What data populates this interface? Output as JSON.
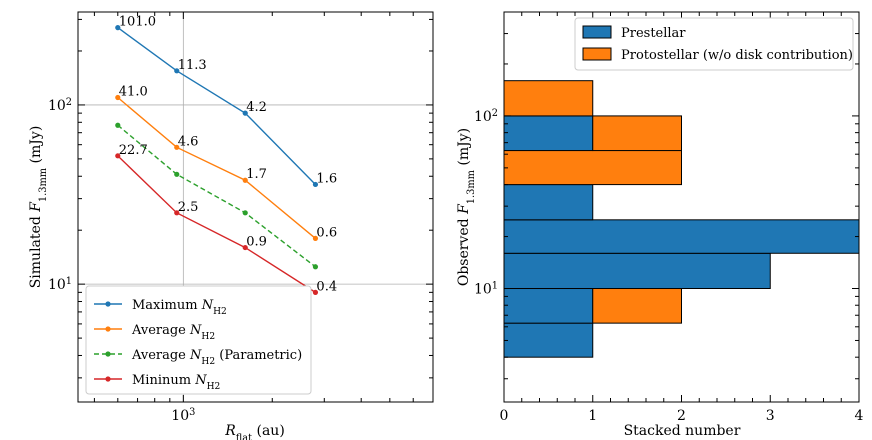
{
  "chart_data": [
    {
      "type": "line",
      "xlabel": "R_flat (au)",
      "ylabel": "Simulated F_1.3mm (mJy)",
      "xscale": "log",
      "yscale": "log",
      "x_tick_labels": [
        "10^3"
      ],
      "y_tick_labels": [
        "10^1",
        "10^2"
      ],
      "xlim": [
        440,
        7000
      ],
      "ylim": [
        2.2,
        330
      ],
      "grid": true,
      "legend_position": "lower-left",
      "x": [
        600,
        950,
        1620,
        2800
      ],
      "series": [
        {
          "name": "Maximum N_H2",
          "color": "#1f77b4",
          "dash": "solid",
          "values": [
            270,
            155,
            90,
            36
          ],
          "labels": [
            "101.0",
            "11.3",
            "4.2",
            "1.6"
          ]
        },
        {
          "name": "Average N_H2",
          "color": "#ff7f0e",
          "dash": "solid",
          "values": [
            110,
            58,
            38,
            18
          ],
          "labels": [
            "41.0",
            "4.6",
            "1.7",
            "0.6"
          ]
        },
        {
          "name": "Average N_H2 (Parametric)",
          "color": "#2ca02c",
          "dash": "dashed",
          "values": [
            77,
            41,
            25,
            12.5
          ],
          "labels": []
        },
        {
          "name": "Mininum N_H2",
          "color": "#d62728",
          "dash": "solid",
          "values": [
            52,
            25,
            16,
            9
          ],
          "labels": [
            "22.7",
            "2.5",
            "0.9",
            "0.4"
          ]
        }
      ]
    },
    {
      "type": "bar",
      "orientation": "horizontal",
      "stacked": true,
      "xlabel": "Stacked number",
      "ylabel": "Observed F_1.3mm (mJy)",
      "yscale": "log",
      "y_tick_labels": [
        "10^1",
        "10^2"
      ],
      "xlim": [
        0,
        4
      ],
      "x_ticks": [
        0,
        1,
        2,
        3,
        4
      ],
      "ylim": [
        2.2,
        400
      ],
      "grid": false,
      "legend_position": "top-right",
      "bins": [
        [
          4,
          6.3
        ],
        [
          6.3,
          10
        ],
        [
          10,
          16
        ],
        [
          16,
          25
        ],
        [
          25,
          40
        ],
        [
          40,
          63
        ],
        [
          63,
          100
        ],
        [
          100,
          160
        ]
      ],
      "series": [
        {
          "name": "Prestellar",
          "color": "#1f77b4",
          "values": [
            1,
            1,
            3,
            4,
            1,
            0,
            1,
            0
          ]
        },
        {
          "name": "Protostellar (w/o disk contribution)",
          "color": "#ff7f0e",
          "values": [
            0,
            1,
            0,
            0,
            0,
            2,
            1,
            1
          ]
        }
      ]
    }
  ]
}
